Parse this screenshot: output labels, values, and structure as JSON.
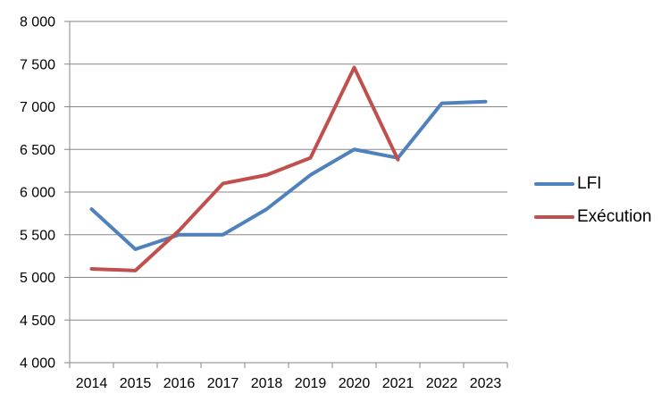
{
  "chart_data": {
    "type": "line",
    "title": "",
    "xlabel": "",
    "ylabel": "",
    "x": [
      "2014",
      "2015",
      "2016",
      "2017",
      "2018",
      "2019",
      "2020",
      "2021",
      "2022",
      "2023"
    ],
    "series": [
      {
        "name": "LFI",
        "color": "#4F81BD",
        "values": [
          5800,
          5330,
          5500,
          5500,
          5800,
          6200,
          6500,
          6400,
          7040,
          7060
        ]
      },
      {
        "name": "Exécution",
        "color": "#C0504D",
        "values": [
          5100,
          5080,
          5550,
          6100,
          6200,
          6400,
          7460,
          6380
        ]
      }
    ],
    "ylim": [
      4000,
      8000
    ],
    "ytick_step": 500,
    "ytick_labels": [
      "4 000",
      "4 500",
      "5 000",
      "5 500",
      "6 000",
      "6 500",
      "7 000",
      "7 500",
      "8 000"
    ],
    "grid": true,
    "grid_color": "#878787",
    "axis_color": "#878787",
    "text_color": "#000000",
    "legend_position": "right"
  }
}
